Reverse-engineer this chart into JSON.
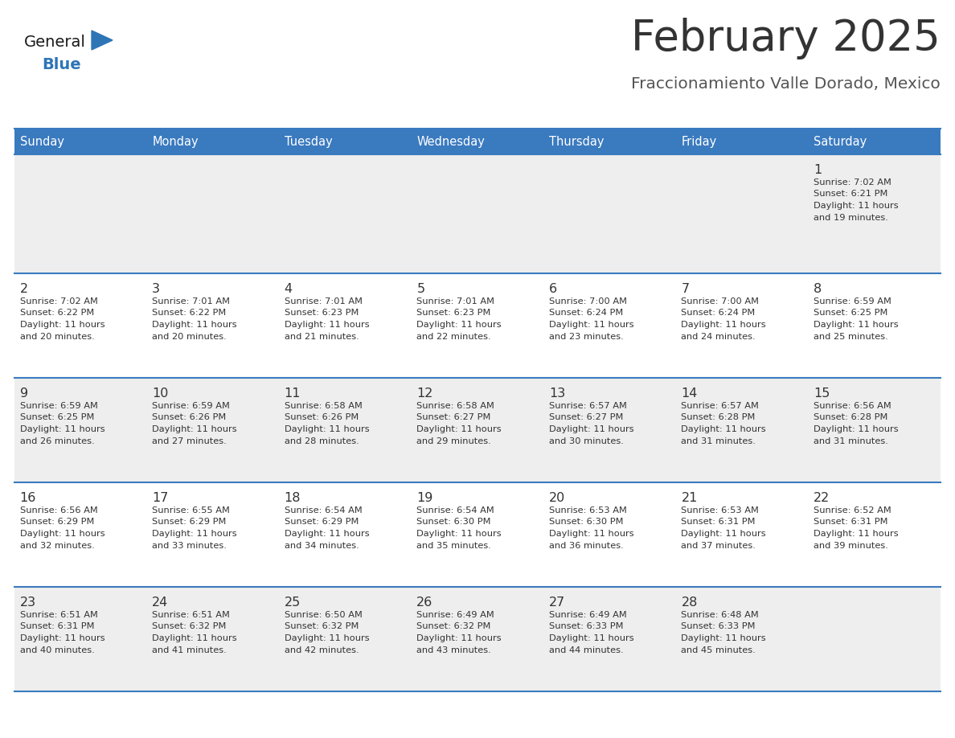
{
  "title": "February 2025",
  "subtitle": "Fraccionamiento Valle Dorado, Mexico",
  "header_color": "#3a7abf",
  "header_text_color": "#ffffff",
  "day_names": [
    "Sunday",
    "Monday",
    "Tuesday",
    "Wednesday",
    "Thursday",
    "Friday",
    "Saturday"
  ],
  "bg_color": "#ffffff",
  "cell_bg_light": "#eeeeee",
  "cell_bg_white": "#ffffff",
  "day_num_color": "#333333",
  "info_color": "#333333",
  "line_color": "#3a7abf",
  "title_color": "#333333",
  "subtitle_color": "#555555",
  "logo_general_color": "#1a1a1a",
  "logo_blue_color": "#2e75b6",
  "calendar_data": [
    [
      null,
      null,
      null,
      null,
      null,
      null,
      {
        "day": 1,
        "sunrise": "7:02 AM",
        "sunset": "6:21 PM",
        "daylight": "11 hours and 19 minutes."
      }
    ],
    [
      {
        "day": 2,
        "sunrise": "7:02 AM",
        "sunset": "6:22 PM",
        "daylight": "11 hours and 20 minutes."
      },
      {
        "day": 3,
        "sunrise": "7:01 AM",
        "sunset": "6:22 PM",
        "daylight": "11 hours and 20 minutes."
      },
      {
        "day": 4,
        "sunrise": "7:01 AM",
        "sunset": "6:23 PM",
        "daylight": "11 hours and 21 minutes."
      },
      {
        "day": 5,
        "sunrise": "7:01 AM",
        "sunset": "6:23 PM",
        "daylight": "11 hours and 22 minutes."
      },
      {
        "day": 6,
        "sunrise": "7:00 AM",
        "sunset": "6:24 PM",
        "daylight": "11 hours and 23 minutes."
      },
      {
        "day": 7,
        "sunrise": "7:00 AM",
        "sunset": "6:24 PM",
        "daylight": "11 hours and 24 minutes."
      },
      {
        "day": 8,
        "sunrise": "6:59 AM",
        "sunset": "6:25 PM",
        "daylight": "11 hours and 25 minutes."
      }
    ],
    [
      {
        "day": 9,
        "sunrise": "6:59 AM",
        "sunset": "6:25 PM",
        "daylight": "11 hours and 26 minutes."
      },
      {
        "day": 10,
        "sunrise": "6:59 AM",
        "sunset": "6:26 PM",
        "daylight": "11 hours and 27 minutes."
      },
      {
        "day": 11,
        "sunrise": "6:58 AM",
        "sunset": "6:26 PM",
        "daylight": "11 hours and 28 minutes."
      },
      {
        "day": 12,
        "sunrise": "6:58 AM",
        "sunset": "6:27 PM",
        "daylight": "11 hours and 29 minutes."
      },
      {
        "day": 13,
        "sunrise": "6:57 AM",
        "sunset": "6:27 PM",
        "daylight": "11 hours and 30 minutes."
      },
      {
        "day": 14,
        "sunrise": "6:57 AM",
        "sunset": "6:28 PM",
        "daylight": "11 hours and 31 minutes."
      },
      {
        "day": 15,
        "sunrise": "6:56 AM",
        "sunset": "6:28 PM",
        "daylight": "11 hours and 31 minutes."
      }
    ],
    [
      {
        "day": 16,
        "sunrise": "6:56 AM",
        "sunset": "6:29 PM",
        "daylight": "11 hours and 32 minutes."
      },
      {
        "day": 17,
        "sunrise": "6:55 AM",
        "sunset": "6:29 PM",
        "daylight": "11 hours and 33 minutes."
      },
      {
        "day": 18,
        "sunrise": "6:54 AM",
        "sunset": "6:29 PM",
        "daylight": "11 hours and 34 minutes."
      },
      {
        "day": 19,
        "sunrise": "6:54 AM",
        "sunset": "6:30 PM",
        "daylight": "11 hours and 35 minutes."
      },
      {
        "day": 20,
        "sunrise": "6:53 AM",
        "sunset": "6:30 PM",
        "daylight": "11 hours and 36 minutes."
      },
      {
        "day": 21,
        "sunrise": "6:53 AM",
        "sunset": "6:31 PM",
        "daylight": "11 hours and 37 minutes."
      },
      {
        "day": 22,
        "sunrise": "6:52 AM",
        "sunset": "6:31 PM",
        "daylight": "11 hours and 39 minutes."
      }
    ],
    [
      {
        "day": 23,
        "sunrise": "6:51 AM",
        "sunset": "6:31 PM",
        "daylight": "11 hours and 40 minutes."
      },
      {
        "day": 24,
        "sunrise": "6:51 AM",
        "sunset": "6:32 PM",
        "daylight": "11 hours and 41 minutes."
      },
      {
        "day": 25,
        "sunrise": "6:50 AM",
        "sunset": "6:32 PM",
        "daylight": "11 hours and 42 minutes."
      },
      {
        "day": 26,
        "sunrise": "6:49 AM",
        "sunset": "6:32 PM",
        "daylight": "11 hours and 43 minutes."
      },
      {
        "day": 27,
        "sunrise": "6:49 AM",
        "sunset": "6:33 PM",
        "daylight": "11 hours and 44 minutes."
      },
      {
        "day": 28,
        "sunrise": "6:48 AM",
        "sunset": "6:33 PM",
        "daylight": "11 hours and 45 minutes."
      },
      null
    ]
  ]
}
